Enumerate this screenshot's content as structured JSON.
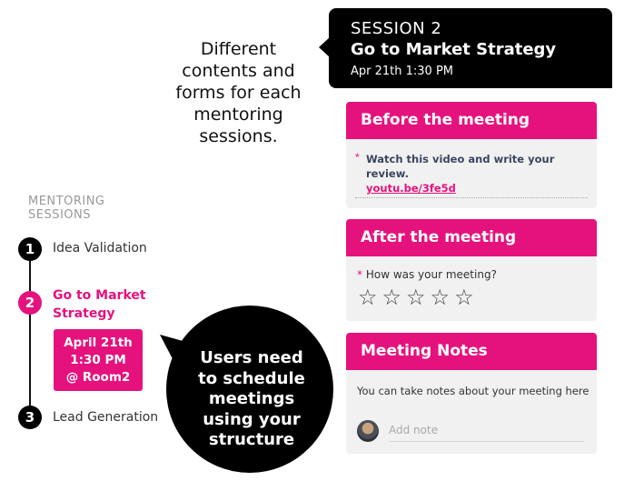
{
  "intro": {
    "lines": [
      "Different",
      "contents and",
      "forms for each",
      "mentoring",
      "sessions."
    ]
  },
  "session": {
    "number": "SESSION 2",
    "title": "Go to Market Strategy",
    "date": "Apr 21th  1:30 PM"
  },
  "before_meeting": {
    "title": "Before the meeting",
    "required_mark": "*",
    "task": "Watch this video and write your review.",
    "link": "youtu.be/3fe5d"
  },
  "after_meeting": {
    "title": "After the meeting",
    "required_mark": "*",
    "question": "How was your meeting?",
    "rating_max": 5,
    "rating_value": 0,
    "star_glyph": "☆"
  },
  "notes": {
    "title": "Meeting Notes",
    "description": "You can take notes about your meeting here",
    "placeholder": "Add note"
  },
  "mentoring": {
    "label_lines": [
      "MENTORING",
      "SESSIONS"
    ],
    "steps": [
      {
        "number": "1",
        "label_lines": [
          "Idea Validation"
        ],
        "active": false
      },
      {
        "number": "2",
        "label_lines": [
          "Go to Market",
          "Strategy"
        ],
        "active": true
      },
      {
        "number": "3",
        "label_lines": [
          "Lead Generation"
        ],
        "active": false
      }
    ],
    "meeting": {
      "lines": [
        "April 21th",
        "1:30 PM",
        "@ Room2"
      ]
    }
  },
  "callout": {
    "lines": [
      "Users need",
      "to schedule",
      "meetings",
      "using your",
      "structure"
    ]
  },
  "colors": {
    "accent": "#e5127d",
    "dark": "#000000",
    "card_bg": "#f1f1f1"
  }
}
